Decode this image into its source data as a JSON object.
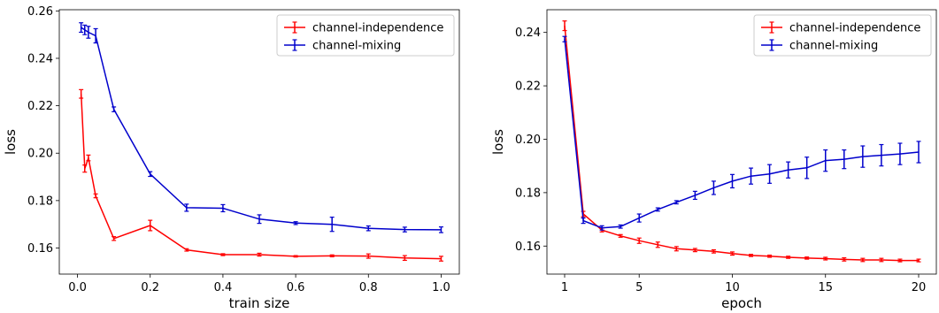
{
  "chart_data": [
    {
      "type": "line",
      "xlabel": "train size",
      "ylabel": "loss",
      "xlim": [
        -0.05,
        1.05
      ],
      "ylim": [
        0.149,
        0.2605
      ],
      "xticks": [
        0.0,
        0.2,
        0.4,
        0.6,
        0.8,
        1.0
      ],
      "xtick_labels": [
        "0.0",
        "0.2",
        "0.4",
        "0.6",
        "0.8",
        "1.0"
      ],
      "yticks": [
        0.16,
        0.18,
        0.2,
        0.22,
        0.24,
        0.26
      ],
      "ytick_labels": [
        "0.16",
        "0.18",
        "0.20",
        "0.22",
        "0.24",
        "0.26"
      ],
      "grid": false,
      "legend_position": "top-right",
      "series": [
        {
          "name": "channel-independence",
          "color": "#ff0000",
          "x": [
            0.01,
            0.02,
            0.03,
            0.05,
            0.1,
            0.2,
            0.3,
            0.4,
            0.5,
            0.6,
            0.7,
            0.8,
            0.9,
            1.0
          ],
          "y": [
            0.225,
            0.1935,
            0.198,
            0.182,
            0.164,
            0.1695,
            0.1592,
            0.1572,
            0.1572,
            0.1565,
            0.1567,
            0.1566,
            0.1558,
            0.1555
          ],
          "err": [
            0.0018,
            0.0015,
            0.0012,
            0.0008,
            0.0008,
            0.0022,
            0.0005,
            0.0004,
            0.0006,
            0.0003,
            0.0004,
            0.0009,
            0.001,
            0.001
          ]
        },
        {
          "name": "channel-mixing",
          "color": "#0000cc",
          "x": [
            0.01,
            0.02,
            0.03,
            0.05,
            0.1,
            0.2,
            0.3,
            0.4,
            0.5,
            0.6,
            0.7,
            0.8,
            0.9,
            1.0
          ],
          "y": [
            0.253,
            0.252,
            0.251,
            0.2495,
            0.2185,
            0.1912,
            0.177,
            0.1768,
            0.1722,
            0.1705,
            0.17,
            0.1683,
            0.1678,
            0.1677
          ],
          "err": [
            0.002,
            0.002,
            0.0025,
            0.003,
            0.001,
            0.001,
            0.0015,
            0.0015,
            0.0018,
            0.0006,
            0.003,
            0.001,
            0.001,
            0.0012
          ]
        }
      ]
    },
    {
      "type": "line",
      "xlabel": "epoch",
      "ylabel": "loss",
      "xlim": [
        0.05,
        20.95
      ],
      "ylim": [
        0.1495,
        0.2485
      ],
      "xticks": [
        1,
        5,
        10,
        15,
        20
      ],
      "xtick_labels": [
        "1",
        "5",
        "10",
        "15",
        "20"
      ],
      "yticks": [
        0.16,
        0.18,
        0.2,
        0.22,
        0.24
      ],
      "ytick_labels": [
        "0.16",
        "0.18",
        "0.20",
        "0.22",
        "0.24"
      ],
      "grid": false,
      "legend_position": "top-right",
      "series": [
        {
          "name": "channel-independence",
          "color": "#ff0000",
          "x": [
            1,
            2,
            3,
            4,
            5,
            6,
            7,
            8,
            9,
            10,
            11,
            12,
            13,
            14,
            15,
            16,
            17,
            18,
            19,
            20
          ],
          "y": [
            0.2425,
            0.172,
            0.166,
            0.1638,
            0.162,
            0.1605,
            0.159,
            0.1585,
            0.158,
            0.1572,
            0.1565,
            0.1562,
            0.1558,
            0.1555,
            0.1553,
            0.155,
            0.1548,
            0.1548,
            0.1546,
            0.1546
          ],
          "err": [
            0.0018,
            0.001,
            0.0007,
            0.0005,
            0.001,
            0.001,
            0.0008,
            0.0006,
            0.0006,
            0.0006,
            0.0004,
            0.0004,
            0.0004,
            0.0004,
            0.0005,
            0.0006,
            0.0006,
            0.0006,
            0.0005,
            0.0005
          ]
        },
        {
          "name": "channel-mixing",
          "color": "#0000cc",
          "x": [
            1,
            2,
            3,
            4,
            5,
            6,
            7,
            8,
            9,
            10,
            11,
            12,
            13,
            14,
            15,
            16,
            17,
            18,
            19,
            20
          ],
          "y": [
            0.2375,
            0.1695,
            0.1668,
            0.1673,
            0.1705,
            0.1737,
            0.1764,
            0.179,
            0.1818,
            0.1843,
            0.1862,
            0.187,
            0.1885,
            0.1893,
            0.192,
            0.1925,
            0.1935,
            0.194,
            0.1945,
            0.1952
          ],
          "err": [
            0.001,
            0.001,
            0.0008,
            0.0006,
            0.0015,
            0.0006,
            0.0006,
            0.0015,
            0.0025,
            0.0025,
            0.003,
            0.0035,
            0.003,
            0.004,
            0.004,
            0.0035,
            0.004,
            0.004,
            0.004,
            0.004
          ]
        }
      ]
    }
  ]
}
